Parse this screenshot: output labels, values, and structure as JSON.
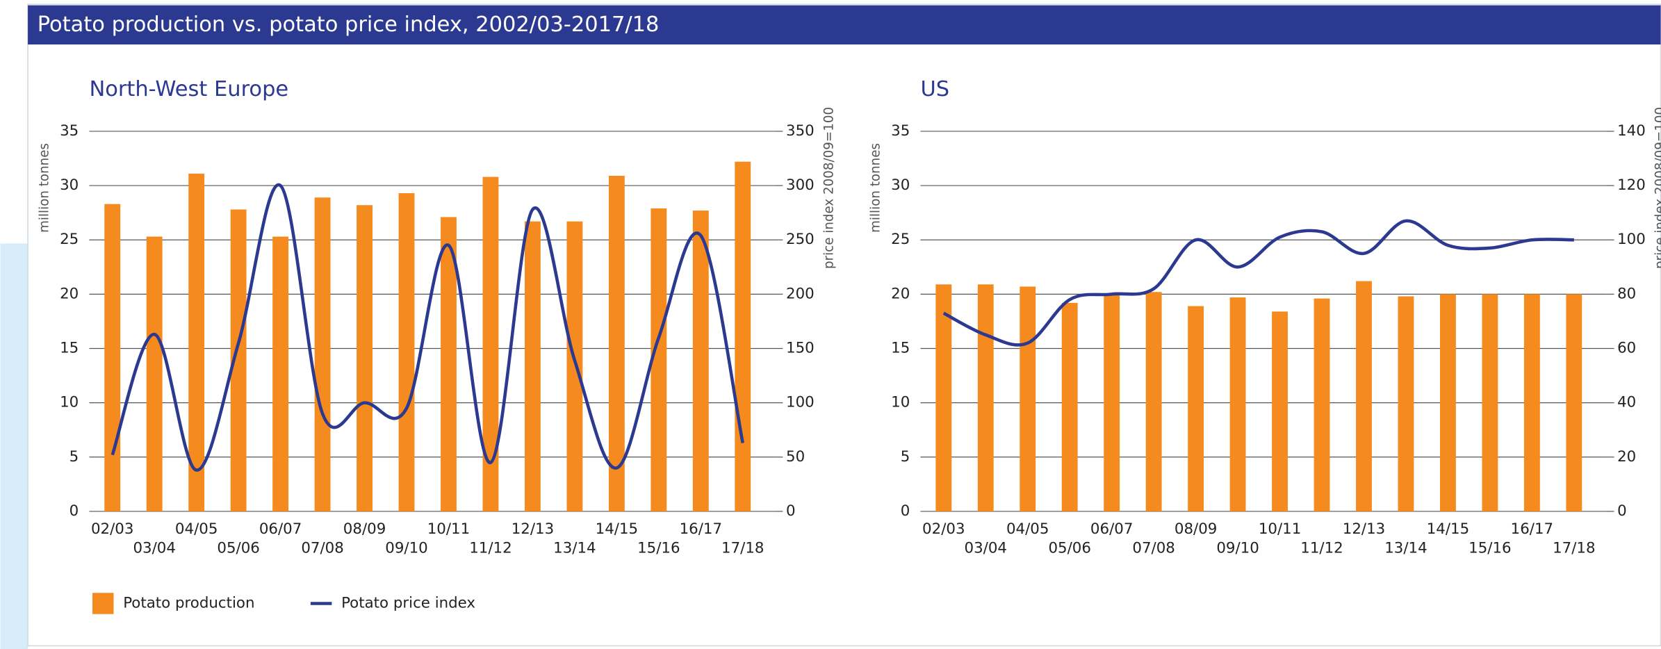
{
  "title": "Potato production vs. potato price index, 2002/03-2017/18",
  "chart_data": [
    {
      "type": "bar",
      "title": "North-West Europe",
      "y_label": "million tonnes",
      "y2_label": "price index 2008/09=100",
      "categories": [
        "02/03",
        "03/04",
        "04/05",
        "05/06",
        "06/07",
        "07/08",
        "08/09",
        "09/10",
        "10/11",
        "11/12",
        "12/13",
        "13/14",
        "14/15",
        "15/16",
        "16/17",
        "17/18"
      ],
      "series": [
        {
          "name": "Potato production",
          "type": "bar",
          "color": "#f58a1f",
          "values": [
            28.3,
            25.3,
            31.1,
            27.8,
            25.3,
            28.9,
            28.2,
            29.3,
            27.1,
            30.8,
            26.7,
            26.7,
            30.9,
            27.9,
            27.7,
            32.2
          ]
        },
        {
          "name": "Potato price index",
          "type": "line",
          "axis": "y2",
          "color": "#2b3990",
          "values": [
            52,
            163,
            38,
            155,
            300,
            90,
            100,
            95,
            245,
            45,
            278,
            139,
            40,
            160,
            254,
            63
          ]
        }
      ],
      "ylim": [
        0,
        35
      ],
      "yticks": [
        0,
        5,
        10,
        15,
        20,
        25,
        30,
        35
      ],
      "y2lim": [
        0,
        350
      ],
      "y2ticks": [
        0,
        50,
        100,
        150,
        200,
        250,
        300,
        350
      ],
      "grid": true
    },
    {
      "type": "bar",
      "title": "US",
      "y_label": "million tonnes",
      "y2_label": "price index 2008/09=100",
      "categories": [
        "02/03",
        "03/04",
        "04/05",
        "05/06",
        "06/07",
        "07/08",
        "08/09",
        "09/10",
        "10/11",
        "11/12",
        "12/13",
        "13/14",
        "14/15",
        "15/16",
        "16/17",
        "17/18"
      ],
      "series": [
        {
          "type": "bar",
          "color": "#f58a1f",
          "values": [
            20.9,
            20.9,
            20.7,
            19.2,
            20.0,
            20.2,
            18.9,
            19.7,
            18.4,
            19.6,
            21.2,
            19.8,
            20.0,
            20.0,
            20.0,
            20.0
          ]
        },
        {
          "type": "line",
          "axis": "y2",
          "color": "#2b3990",
          "values": [
            73,
            65,
            62,
            78,
            80,
            82,
            100,
            90,
            101,
            103,
            95,
            107,
            98,
            97,
            100,
            100
          ]
        }
      ],
      "ylim": [
        0,
        35
      ],
      "yticks": [
        0,
        5,
        10,
        15,
        20,
        25,
        30,
        35
      ],
      "y2lim": [
        0,
        140
      ],
      "y2ticks": [
        0,
        20,
        40,
        60,
        80,
        100,
        120,
        140
      ],
      "grid": true
    }
  ]
}
